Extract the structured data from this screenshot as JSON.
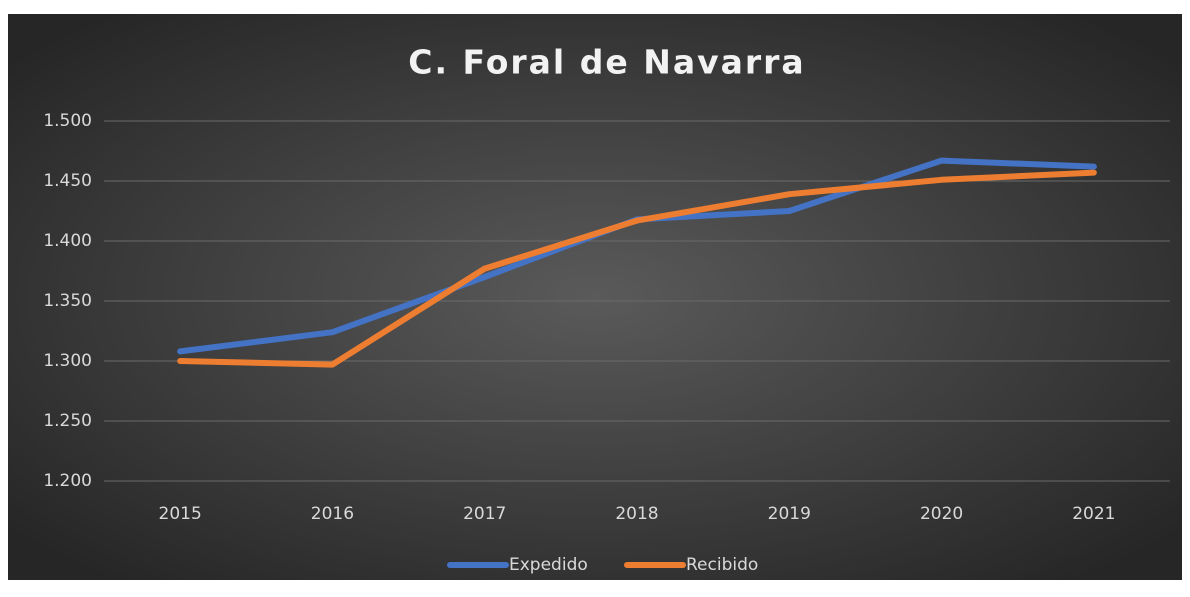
{
  "chart_data": {
    "type": "line",
    "title": "C. Foral de Navarra",
    "categories": [
      "2015",
      "2016",
      "2017",
      "2018",
      "2019",
      "2020",
      "2021"
    ],
    "series": [
      {
        "name": "Expedido",
        "color": "#4472c4",
        "values": [
          1308,
          1324,
          1370,
          1418,
          1425,
          1467,
          1462
        ]
      },
      {
        "name": "Recibido",
        "color": "#ed7d31",
        "values": [
          1300,
          1297,
          1377,
          1417,
          1439,
          1451,
          1457
        ]
      }
    ],
    "ylim": [
      1200,
      1500
    ],
    "yticks": [
      {
        "value": 1200,
        "label": "1.200"
      },
      {
        "value": 1250,
        "label": "1.250"
      },
      {
        "value": 1300,
        "label": "1.300"
      },
      {
        "value": 1350,
        "label": "1.350"
      },
      {
        "value": 1400,
        "label": "1.400"
      },
      {
        "value": 1450,
        "label": "1.450"
      },
      {
        "value": 1500,
        "label": "1.500"
      }
    ],
    "grid": true,
    "legend": "bottom"
  }
}
